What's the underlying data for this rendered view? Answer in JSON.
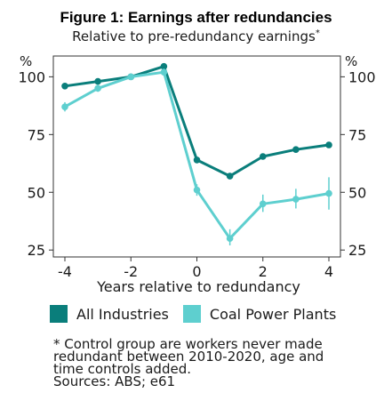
{
  "header": {
    "title": "Figure 1: Earnings after redundancies",
    "subtitle": "Relative to pre-redundancy earnings",
    "subtitle_mark": "*"
  },
  "chart_data": {
    "type": "line",
    "title": "Figure 1: Earnings after redundancies",
    "subtitle": "Relative to pre-redundancy earnings*",
    "xlabel": "Years relative to redundancy",
    "ylabel_left": "%",
    "ylabel_right": "%",
    "x": [
      -4,
      -3,
      -2,
      -1,
      0,
      1,
      2,
      3,
      4
    ],
    "xticks": [
      -4,
      -2,
      0,
      2,
      4
    ],
    "yticks": [
      25,
      50,
      75,
      100
    ],
    "xlim": [
      -4.35,
      4.35
    ],
    "ylim": [
      22,
      109
    ],
    "grid": false,
    "legend_position": "bottom",
    "series": [
      {
        "name": "All Industries",
        "color": "#0a7e7b",
        "values": [
          96,
          98,
          100,
          104.5,
          64,
          57,
          65.5,
          68.5,
          70.5
        ]
      },
      {
        "name": "Coal Power Plants",
        "color": "#5ecfcf",
        "values": [
          87,
          95,
          100,
          102,
          51,
          30,
          45,
          47,
          49.5
        ],
        "error_low": [
          85,
          93.5,
          100,
          100.5,
          48.5,
          27,
          41.5,
          43,
          42.5
        ],
        "error_high": [
          89,
          96.5,
          100,
          103.5,
          53.5,
          34,
          49,
          51.5,
          56.5
        ]
      }
    ]
  },
  "notes": {
    "line1": "* Control group are workers never made",
    "line2": "redundant between 2010-2020, age and",
    "line3": "time controls added.",
    "line4": "Sources: ABS; e61"
  }
}
